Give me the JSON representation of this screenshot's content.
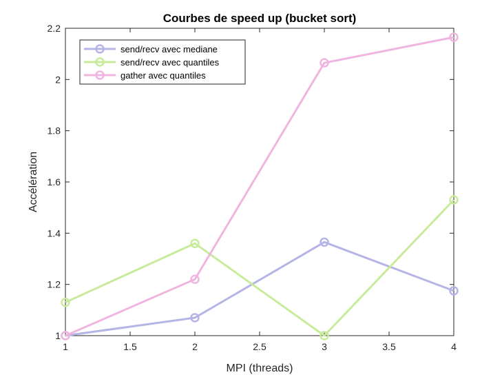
{
  "chart_data": {
    "type": "line",
    "title": "Courbes de speed up (bucket sort)",
    "xlabel": "MPI (threads)",
    "ylabel": "Accélération",
    "xlim": [
      1,
      4
    ],
    "ylim": [
      1,
      2.2
    ],
    "xticks": [
      1,
      1.5,
      2,
      2.5,
      3,
      3.5,
      4
    ],
    "yticks": [
      1,
      1.2,
      1.4,
      1.6,
      1.8,
      2,
      2.2
    ],
    "xtick_labels": [
      "1",
      "1.5",
      "2",
      "2.5",
      "3",
      "3.5",
      "4"
    ],
    "ytick_labels": [
      "1",
      "1.2",
      "1.4",
      "1.6",
      "1.8",
      "2",
      "2.2"
    ],
    "x": [
      1,
      2,
      3,
      4
    ],
    "grid": false,
    "legend_position": "top-left",
    "series": [
      {
        "name": "send/recv avec mediane",
        "color": "#b4b4e6",
        "values": [
          1.0,
          1.07,
          1.365,
          1.175
        ]
      },
      {
        "name": "send/recv avec quantiles",
        "color": "#c8eb9b",
        "values": [
          1.13,
          1.36,
          1.0,
          1.53
        ]
      },
      {
        "name": "gather avec quantiles",
        "color": "#f0b4e1",
        "values": [
          1.0,
          1.22,
          2.065,
          2.165
        ]
      }
    ]
  }
}
